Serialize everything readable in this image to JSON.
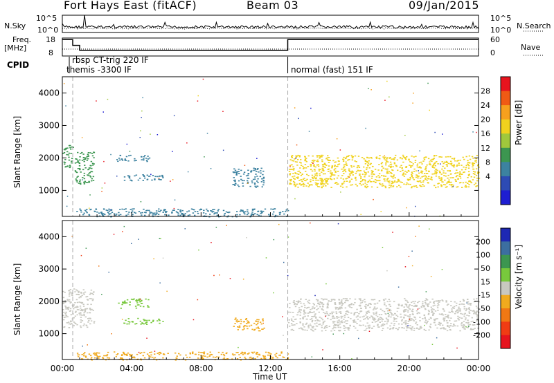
{
  "header": {
    "station": "Fort Hays East (fitACF)",
    "beam": "Beam 03",
    "date": "09/Jan/2015"
  },
  "status_panel": {
    "nsky_label": "N.Sky",
    "nsky_ticks": [
      "10^5",
      "10^0"
    ],
    "nsearch_label": "N.Search",
    "nsearch_ticks": [
      "10^5",
      "10^0"
    ],
    "freq_label_1": "Freq.",
    "freq_label_2": "[MHz]",
    "freq_ticks": [
      "18",
      "8"
    ],
    "nave_label": "Nave",
    "nave_ticks": [
      "60",
      "0"
    ],
    "cpid_label": "CPID",
    "cpid_entries": [
      {
        "text": "rbsp CT-trig 220 IF"
      },
      {
        "text": "themis -3300 IF"
      },
      {
        "text": "normal (fast) 151 IF"
      }
    ],
    "freq_steps": [
      {
        "from_hr": 0.0,
        "to_hr": 0.6,
        "mhz": 17.5
      },
      {
        "from_hr": 0.6,
        "to_hr": 1.0,
        "mhz": 14.0
      },
      {
        "from_hr": 1.0,
        "to_hr": 13.0,
        "mhz": 11.0
      },
      {
        "from_hr": 13.0,
        "to_hr": 24.0,
        "mhz": 17.5
      }
    ]
  },
  "chart_data": [
    {
      "type": "heatmap",
      "panel": "power",
      "ylabel": "Slant Range [km]",
      "xlim": [
        0,
        24
      ],
      "ylim": [
        200,
        4500
      ],
      "yticks": [
        "4000",
        "3000",
        "2000",
        "1000"
      ],
      "colorbar": {
        "label": "Power [dB]",
        "ticks": [
          "28",
          "24",
          "20",
          "16",
          "12",
          "8",
          "4"
        ],
        "colors": [
          "#e8141e",
          "#f05a14",
          "#f7a01e",
          "#f0d21e",
          "#a0c83c",
          "#3c9650",
          "#3c82a0",
          "#2d4bb4",
          "#1e1ed2"
        ]
      },
      "features": [
        {
          "x": [
            0.0,
            0.6
          ],
          "range_km": [
            1700,
            2400
          ],
          "db": 12
        },
        {
          "x": [
            0.7,
            1.8
          ],
          "range_km": [
            1200,
            2200
          ],
          "db": 12
        },
        {
          "x": [
            3.1,
            5.0
          ],
          "range_km": [
            1900,
            2100
          ],
          "db": 6
        },
        {
          "x": [
            3.5,
            5.8
          ],
          "range_km": [
            1300,
            1500
          ],
          "db": 6
        },
        {
          "x": [
            9.8,
            11.6
          ],
          "range_km": [
            1100,
            1700
          ],
          "db": 8
        },
        {
          "x": [
            0.8,
            13.0
          ],
          "range_km": [
            200,
            450
          ],
          "db": 8
        },
        {
          "x": [
            13.0,
            24.0
          ],
          "range_km": [
            1100,
            2100
          ],
          "db": 20
        }
      ]
    },
    {
      "type": "heatmap",
      "panel": "velocity",
      "ylabel": "Slant Range [km]",
      "xlabel": "Time UT",
      "xlim": [
        0,
        24
      ],
      "ylim": [
        200,
        4500
      ],
      "xticks": [
        "00:00",
        "04:00",
        "08:00",
        "12:00",
        "16:00",
        "20:00",
        "00:00"
      ],
      "yticks": [
        "4000",
        "3000",
        "2000",
        "1000"
      ],
      "colorbar": {
        "label": "Velocity [m s⁻¹]",
        "ticks": [
          "200",
          "100",
          "50",
          "15",
          "-15",
          "-50",
          "-100",
          "-200"
        ],
        "colors": [
          "#1e28b4",
          "#3c6ea0",
          "#3c9650",
          "#78c83c",
          "#c8c8c0",
          "#f0aa1e",
          "#f07814",
          "#f03c14",
          "#e6141e"
        ]
      },
      "features": [
        {
          "x": [
            0.0,
            1.8
          ],
          "range_km": [
            1200,
            2400
          ],
          "ms": 0
        },
        {
          "x": [
            3.2,
            5.0
          ],
          "range_km": [
            1800,
            2100
          ],
          "ms": 50
        },
        {
          "x": [
            3.5,
            5.8
          ],
          "range_km": [
            1300,
            1500
          ],
          "ms": 50
        },
        {
          "x": [
            9.8,
            11.6
          ],
          "range_km": [
            1100,
            1500
          ],
          "ms": -50
        },
        {
          "x": [
            0.8,
            13.0
          ],
          "range_km": [
            200,
            450
          ],
          "ms": -50
        },
        {
          "x": [
            13.0,
            24.0
          ],
          "range_km": [
            1100,
            2100
          ],
          "ms": 0
        }
      ]
    }
  ]
}
